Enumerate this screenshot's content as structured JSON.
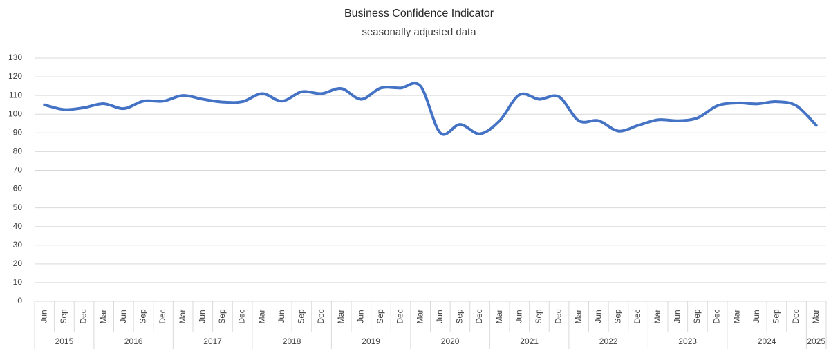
{
  "chart_data": {
    "type": "line",
    "title": "Business Confidence Indicator",
    "subtitle": "seasonally adjusted data",
    "groups": [
      {
        "label": "2015",
        "categories": [
          "Jun",
          "Sep",
          "Dec"
        ]
      },
      {
        "label": "2016",
        "categories": [
          "Mar",
          "Jun",
          "Sep",
          "Dec"
        ]
      },
      {
        "label": "2017",
        "categories": [
          "Mar",
          "Jun",
          "Sep",
          "Dec"
        ]
      },
      {
        "label": "2018",
        "categories": [
          "Mar",
          "Jun",
          "Sep",
          "Dec"
        ]
      },
      {
        "label": "2019",
        "categories": [
          "Mar",
          "Jun",
          "Sep",
          "Dec"
        ]
      },
      {
        "label": "2020",
        "categories": [
          "Mar",
          "Jun",
          "Sep",
          "Dec"
        ]
      },
      {
        "label": "2021",
        "categories": [
          "Mar",
          "Jun",
          "Sep",
          "Dec"
        ]
      },
      {
        "label": "2022",
        "categories": [
          "Mar",
          "Jun",
          "Sep",
          "Dec"
        ]
      },
      {
        "label": "2023",
        "categories": [
          "Mar",
          "Jun",
          "Sep",
          "Dec"
        ]
      },
      {
        "label": "2024",
        "categories": [
          "Mar",
          "Jun",
          "Sep",
          "Dec"
        ]
      },
      {
        "label": "2025",
        "categories": [
          "Mar"
        ]
      }
    ],
    "series": [
      {
        "color": "#4472c4",
        "values": [
          105,
          102.5,
          103.5,
          105.6,
          103,
          107,
          107,
          110,
          108,
          106.5,
          106.7,
          111,
          107,
          112,
          111,
          113.7,
          108,
          114,
          114,
          115,
          90,
          94.5,
          89.5,
          96.5,
          110.4,
          108,
          109.3,
          96.5,
          96.5,
          91,
          94,
          97,
          96.5,
          98,
          104.5,
          106,
          105.5,
          106.7,
          104.5,
          94
        ]
      }
    ],
    "ylim": [
      0,
      130
    ],
    "yticks": [
      0,
      10,
      20,
      30,
      40,
      50,
      60,
      70,
      80,
      90,
      100,
      110,
      120,
      130
    ],
    "grid": true
  }
}
